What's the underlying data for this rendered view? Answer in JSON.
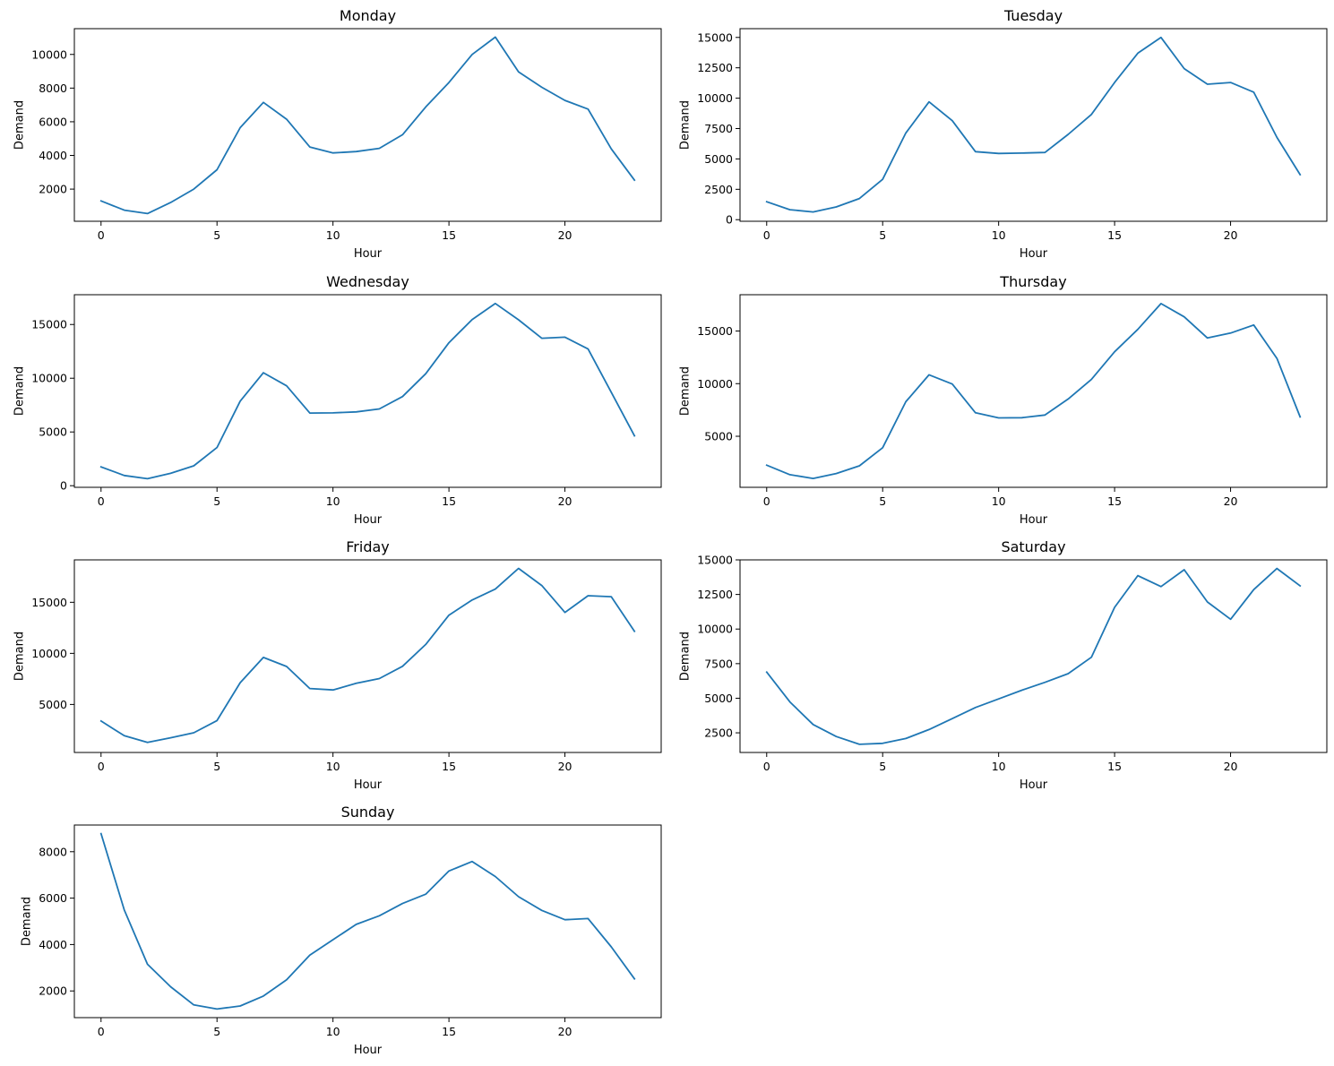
{
  "chart_data": [
    {
      "type": "line",
      "title": "Monday",
      "xlabel": "Hour",
      "ylabel": "Demand",
      "xlim": [
        -1.15,
        24.15
      ],
      "ylim": [
        90,
        11530
      ],
      "xticks": [
        0,
        5,
        10,
        15,
        20
      ],
      "yticks": [
        2000,
        4000,
        6000,
        8000,
        10000
      ],
      "x": [
        0,
        1,
        2,
        3,
        4,
        5,
        6,
        7,
        8,
        9,
        10,
        11,
        12,
        13,
        14,
        15,
        16,
        17,
        18,
        19,
        20,
        21,
        22,
        23
      ],
      "values": [
        1300,
        750,
        550,
        1200,
        2000,
        3150,
        5650,
        7150,
        6150,
        4500,
        4150,
        4230,
        4420,
        5230,
        6880,
        8330,
        10000,
        11030,
        8960,
        8050,
        7270,
        6750,
        4390,
        2530
      ]
    },
    {
      "type": "line",
      "title": "Tuesday",
      "xlabel": "Hour",
      "ylabel": "Demand",
      "xlim": [
        -1.15,
        24.15
      ],
      "ylim": [
        -130,
        15720
      ],
      "xticks": [
        0,
        5,
        10,
        15,
        20
      ],
      "yticks": [
        0,
        2500,
        5000,
        7500,
        10000,
        12500,
        15000
      ],
      "x": [
        0,
        1,
        2,
        3,
        4,
        5,
        6,
        7,
        8,
        9,
        10,
        11,
        12,
        13,
        14,
        15,
        16,
        17,
        18,
        19,
        20,
        21,
        22,
        23
      ],
      "values": [
        1480,
        820,
        640,
        1050,
        1740,
        3320,
        7140,
        9700,
        8150,
        5600,
        5450,
        5480,
        5530,
        7020,
        8660,
        11290,
        13700,
        15000,
        12430,
        11150,
        11290,
        10490,
        6770,
        3700
      ]
    },
    {
      "type": "line",
      "title": "Wednesday",
      "xlabel": "Hour",
      "ylabel": "Demand",
      "xlim": [
        -1.15,
        24.15
      ],
      "ylim": [
        -150,
        17770
      ],
      "xticks": [
        0,
        5,
        10,
        15,
        20
      ],
      "yticks": [
        0,
        5000,
        10000,
        15000
      ],
      "x": [
        0,
        1,
        2,
        3,
        4,
        5,
        6,
        7,
        8,
        9,
        10,
        11,
        12,
        13,
        14,
        15,
        16,
        17,
        18,
        19,
        20,
        21,
        22,
        23
      ],
      "values": [
        1750,
        950,
        650,
        1150,
        1850,
        3550,
        7870,
        10510,
        9290,
        6760,
        6780,
        6870,
        7140,
        8290,
        10420,
        13300,
        15460,
        16950,
        15440,
        13720,
        13820,
        12720,
        8690,
        4640
      ]
    },
    {
      "type": "line",
      "title": "Thursday",
      "xlabel": "Hour",
      "ylabel": "Demand",
      "xlim": [
        -1.15,
        24.15
      ],
      "ylim": [
        150,
        18450
      ],
      "xticks": [
        0,
        5,
        10,
        15,
        20
      ],
      "yticks": [
        5000,
        10000,
        15000
      ],
      "x": [
        0,
        1,
        2,
        3,
        4,
        5,
        6,
        7,
        8,
        9,
        10,
        11,
        12,
        13,
        14,
        15,
        16,
        17,
        18,
        19,
        20,
        21,
        22,
        23
      ],
      "values": [
        2250,
        1350,
        990,
        1460,
        2190,
        3910,
        8290,
        10840,
        9960,
        7230,
        6750,
        6760,
        7020,
        8540,
        10400,
        13030,
        15160,
        17610,
        16350,
        14340,
        14810,
        15570,
        12400,
        6840
      ]
    },
    {
      "type": "line",
      "title": "Friday",
      "xlabel": "Hour",
      "ylabel": "Demand",
      "xlim": [
        -1.15,
        24.15
      ],
      "ylim": [
        300,
        19150
      ],
      "xticks": [
        0,
        5,
        10,
        15,
        20
      ],
      "yticks": [
        5000,
        10000,
        15000
      ],
      "x": [
        0,
        1,
        2,
        3,
        4,
        5,
        6,
        7,
        8,
        9,
        10,
        11,
        12,
        13,
        14,
        15,
        16,
        17,
        18,
        19,
        20,
        21,
        22,
        23
      ],
      "values": [
        3380,
        1940,
        1280,
        1740,
        2230,
        3420,
        7130,
        9600,
        8720,
        6560,
        6420,
        7070,
        7530,
        8730,
        10870,
        13740,
        15220,
        16290,
        18320,
        16640,
        14000,
        15640,
        15550,
        12150
      ]
    },
    {
      "type": "line",
      "title": "Saturday",
      "xlabel": "Hour",
      "ylabel": "Demand",
      "xlim": [
        -1.15,
        24.15
      ],
      "ylim": [
        1080,
        15000
      ],
      "xticks": [
        0,
        5,
        10,
        15,
        20
      ],
      "yticks": [
        2500,
        5000,
        7500,
        10000,
        12500,
        15000
      ],
      "x": [
        0,
        1,
        2,
        3,
        4,
        5,
        6,
        7,
        8,
        9,
        10,
        11,
        12,
        13,
        14,
        15,
        16,
        17,
        18,
        19,
        20,
        21,
        22,
        23
      ],
      "values": [
        6890,
        4730,
        3100,
        2230,
        1670,
        1740,
        2090,
        2740,
        3530,
        4330,
        4950,
        5580,
        6150,
        6780,
        7960,
        11570,
        13860,
        13070,
        14290,
        11960,
        10710,
        12850,
        14380,
        13120
      ]
    },
    {
      "type": "line",
      "title": "Sunday",
      "xlabel": "Hour",
      "ylabel": "Demand",
      "xlim": [
        -1.15,
        24.15
      ],
      "ylim": [
        850,
        9150
      ],
      "xticks": [
        0,
        5,
        10,
        15,
        20
      ],
      "yticks": [
        2000,
        4000,
        6000,
        8000
      ],
      "x": [
        0,
        1,
        2,
        3,
        4,
        5,
        6,
        7,
        8,
        9,
        10,
        11,
        12,
        13,
        14,
        15,
        16,
        17,
        18,
        19,
        20,
        21,
        22,
        23
      ],
      "values": [
        8780,
        5490,
        3150,
        2180,
        1400,
        1220,
        1350,
        1780,
        2480,
        3540,
        4210,
        4870,
        5240,
        5770,
        6170,
        7170,
        7580,
        6930,
        6060,
        5470,
        5070,
        5120,
        3900,
        2520
      ]
    }
  ]
}
